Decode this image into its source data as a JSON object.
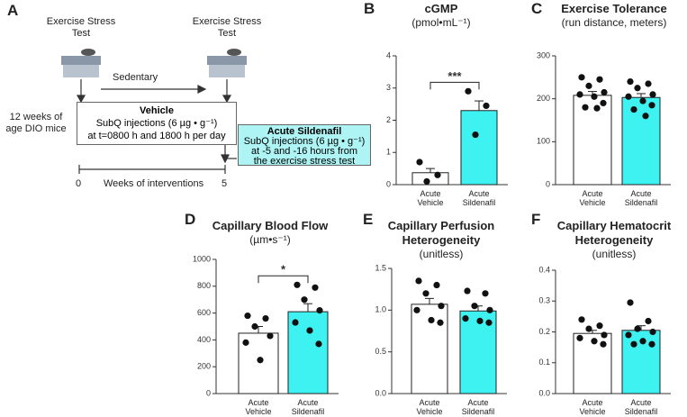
{
  "panel_a": {
    "panel": "A",
    "test_labels": [
      "Exercise Stress Test",
      "Exercise Stress Test"
    ],
    "sedentary": "Sedentary",
    "mice": "12 weeks of age DIO mice",
    "vehicle_box": [
      "Vehicle",
      "SubQ injections (6 µg • g⁻¹)",
      "at t=0800 h and 1800 h per day"
    ],
    "sildenafil_box": [
      "Acute Sildenafil",
      "SubQ injections (6 µg • g⁻¹)",
      "at -5 and -16 hours from",
      "the exercise stress test"
    ],
    "timeline": [
      "0",
      "Weeks of interventions",
      "5"
    ]
  },
  "chart_data": [
    {
      "type": "bar",
      "panel": "B",
      "title": "cGMP",
      "subtitle": "(pmol•mL⁻¹)",
      "categories": [
        "Acute Vehicle",
        "Acute Sildenafil"
      ],
      "colors": [
        "#ffffff",
        "#3ff2f2"
      ],
      "values": [
        0.37,
        2.3
      ],
      "errors": [
        0.13,
        0.3
      ],
      "points": [
        [
          0.7,
          0.3,
          0.1
        ],
        [
          2.9,
          2.45,
          1.55
        ]
      ],
      "significance": "***",
      "ylim": [
        0,
        4
      ],
      "yticks": [
        0,
        1,
        2,
        3,
        4
      ]
    },
    {
      "type": "bar",
      "panel": "C",
      "title": "Exercise Tolerance",
      "subtitle": "(run distance, meters)",
      "categories": [
        "Acute Vehicle",
        "Acute Sildenafil"
      ],
      "colors": [
        "#ffffff",
        "#3ff2f2"
      ],
      "values": [
        208,
        203
      ],
      "errors": [
        9,
        9
      ],
      "points": [
        [
          250,
          245,
          230,
          215,
          210,
          205,
          190,
          180,
          178
        ],
        [
          240,
          235,
          225,
          210,
          205,
          195,
          185,
          175,
          160
        ]
      ],
      "ylim": [
        0,
        300
      ],
      "yticks": [
        0,
        100,
        200,
        300
      ]
    },
    {
      "type": "bar",
      "panel": "D",
      "title": "Capillary Blood Flow",
      "subtitle": "(µm•s⁻¹)",
      "categories": [
        "Acute Vehicle",
        "Acute Sildenafil"
      ],
      "colors": [
        "#ffffff",
        "#3ff2f2"
      ],
      "values": [
        450,
        610
      ],
      "errors": [
        50,
        60
      ],
      "points": [
        [
          580,
          560,
          500,
          430,
          380,
          250
        ],
        [
          810,
          790,
          700,
          620,
          530,
          470,
          370
        ]
      ],
      "significance": "*",
      "ylim": [
        0,
        1000
      ],
      "yticks": [
        0,
        200,
        400,
        600,
        800,
        1000
      ]
    },
    {
      "type": "bar",
      "panel": "E",
      "title": "Capillary Perfusion Heterogeneity",
      "subtitle": "(unitless)",
      "categories": [
        "Acute Vehicle",
        "Acute Sildenafil"
      ],
      "colors": [
        "#ffffff",
        "#3ff2f2"
      ],
      "values": [
        1.07,
        0.99
      ],
      "errors": [
        0.07,
        0.06
      ],
      "points": [
        [
          1.35,
          1.3,
          1.2,
          1.05,
          1.0,
          0.88,
          0.85
        ],
        [
          1.23,
          1.2,
          1.05,
          1.0,
          0.9,
          0.87,
          0.85
        ]
      ],
      "ylim": [
        0,
        1.5
      ],
      "yticks": [
        {
          "value": 0,
          "label": "0.0"
        },
        0.5,
        {
          "value": 1,
          "label": "1.0"
        },
        1.5
      ]
    },
    {
      "type": "bar",
      "panel": "F",
      "title": "Capillary Hematocrit Heterogeneity",
      "subtitle": "(unitless)",
      "categories": [
        "Acute Vehicle",
        "Acute Sildenafil"
      ],
      "colors": [
        "#ffffff",
        "#3ff2f2"
      ],
      "values": [
        0.195,
        0.205
      ],
      "errors": [
        0.01,
        0.015
      ],
      "points": [
        [
          0.24,
          0.22,
          0.21,
          0.19,
          0.18,
          0.17,
          0.16
        ],
        [
          0.295,
          0.235,
          0.21,
          0.2,
          0.19,
          0.17,
          0.16,
          0.16
        ]
      ],
      "ylim": [
        0,
        0.4
      ],
      "yticks": [
        {
          "value": 0,
          "label": "0.0"
        },
        0.1,
        0.2,
        0.3,
        0.4
      ]
    }
  ]
}
